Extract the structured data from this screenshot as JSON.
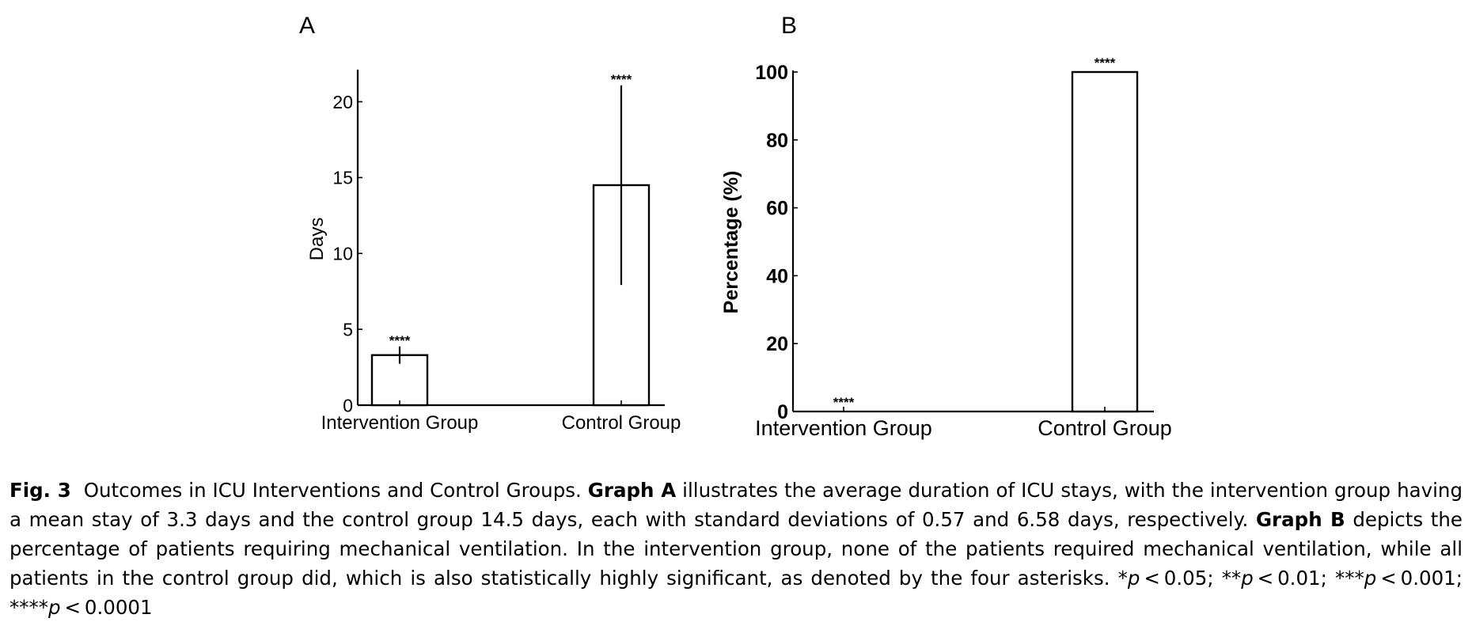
{
  "charts": {
    "A": {
      "panel_label": "A",
      "ylabel": "Days",
      "categories": [
        "Intervention Group",
        "Control Group"
      ],
      "y_ticks": [
        0,
        5,
        10,
        15,
        20
      ]
    },
    "B": {
      "panel_label": "B",
      "ylabel": "Percentage (%)",
      "categories": [
        "Intervention Group",
        "Control Group"
      ],
      "y_ticks": [
        0,
        20,
        40,
        60,
        80,
        100
      ]
    }
  },
  "chart_data": [
    {
      "type": "bar",
      "title": "A",
      "ylabel": "Days",
      "xlabel": "",
      "categories": [
        "Intervention Group",
        "Control Group"
      ],
      "values": [
        3.3,
        14.5
      ],
      "error_bars": [
        0.57,
        6.58
      ],
      "significance": [
        "****",
        "****"
      ],
      "ylim": [
        0,
        23
      ],
      "y_ticks": [
        0,
        5,
        10,
        15,
        20
      ],
      "grid": false,
      "bar_color": "#ffffff",
      "edge_color": "#000000"
    },
    {
      "type": "bar",
      "title": "B",
      "ylabel": "Percentage (%)",
      "xlabel": "",
      "categories": [
        "Intervention Group",
        "Control Group"
      ],
      "values": [
        0,
        100
      ],
      "significance": [
        "****",
        "****"
      ],
      "ylim": [
        0,
        100
      ],
      "y_ticks": [
        0,
        20,
        40,
        60,
        80,
        100
      ],
      "grid": false,
      "bar_color": "#ffffff",
      "edge_color": "#000000"
    }
  ],
  "caption": {
    "fig_label": "Fig. 3",
    "intro": "Outcomes in ICU Interventions and Control Groups.",
    "graph_a_label": "Graph A",
    "graph_a_text": "illustrates the average duration of ICU stays, with the intervention group having a mean stay of 3.3 days and the control group 14.5 days, each with standard deviations of 0.57 and 6.58 days, respectively.",
    "graph_b_label": "Graph B",
    "graph_b_text": "depicts the percentage of patients requiring mechanical ventilation. In the intervention group, none of the patients required mechanical ventilation, while all patients in the control group did, which is also statistically highly significant, as denoted by the four asterisks.",
    "p_levels": [
      {
        "stars": "*",
        "p": "p",
        "rest": " < 0.05;"
      },
      {
        "stars": "**",
        "p": "p",
        "rest": " < 0.01;"
      },
      {
        "stars": "***",
        "p": "p",
        "rest": " < 0.001;"
      },
      {
        "stars": "****",
        "p": "p",
        "rest": " < 0.0001"
      }
    ]
  }
}
